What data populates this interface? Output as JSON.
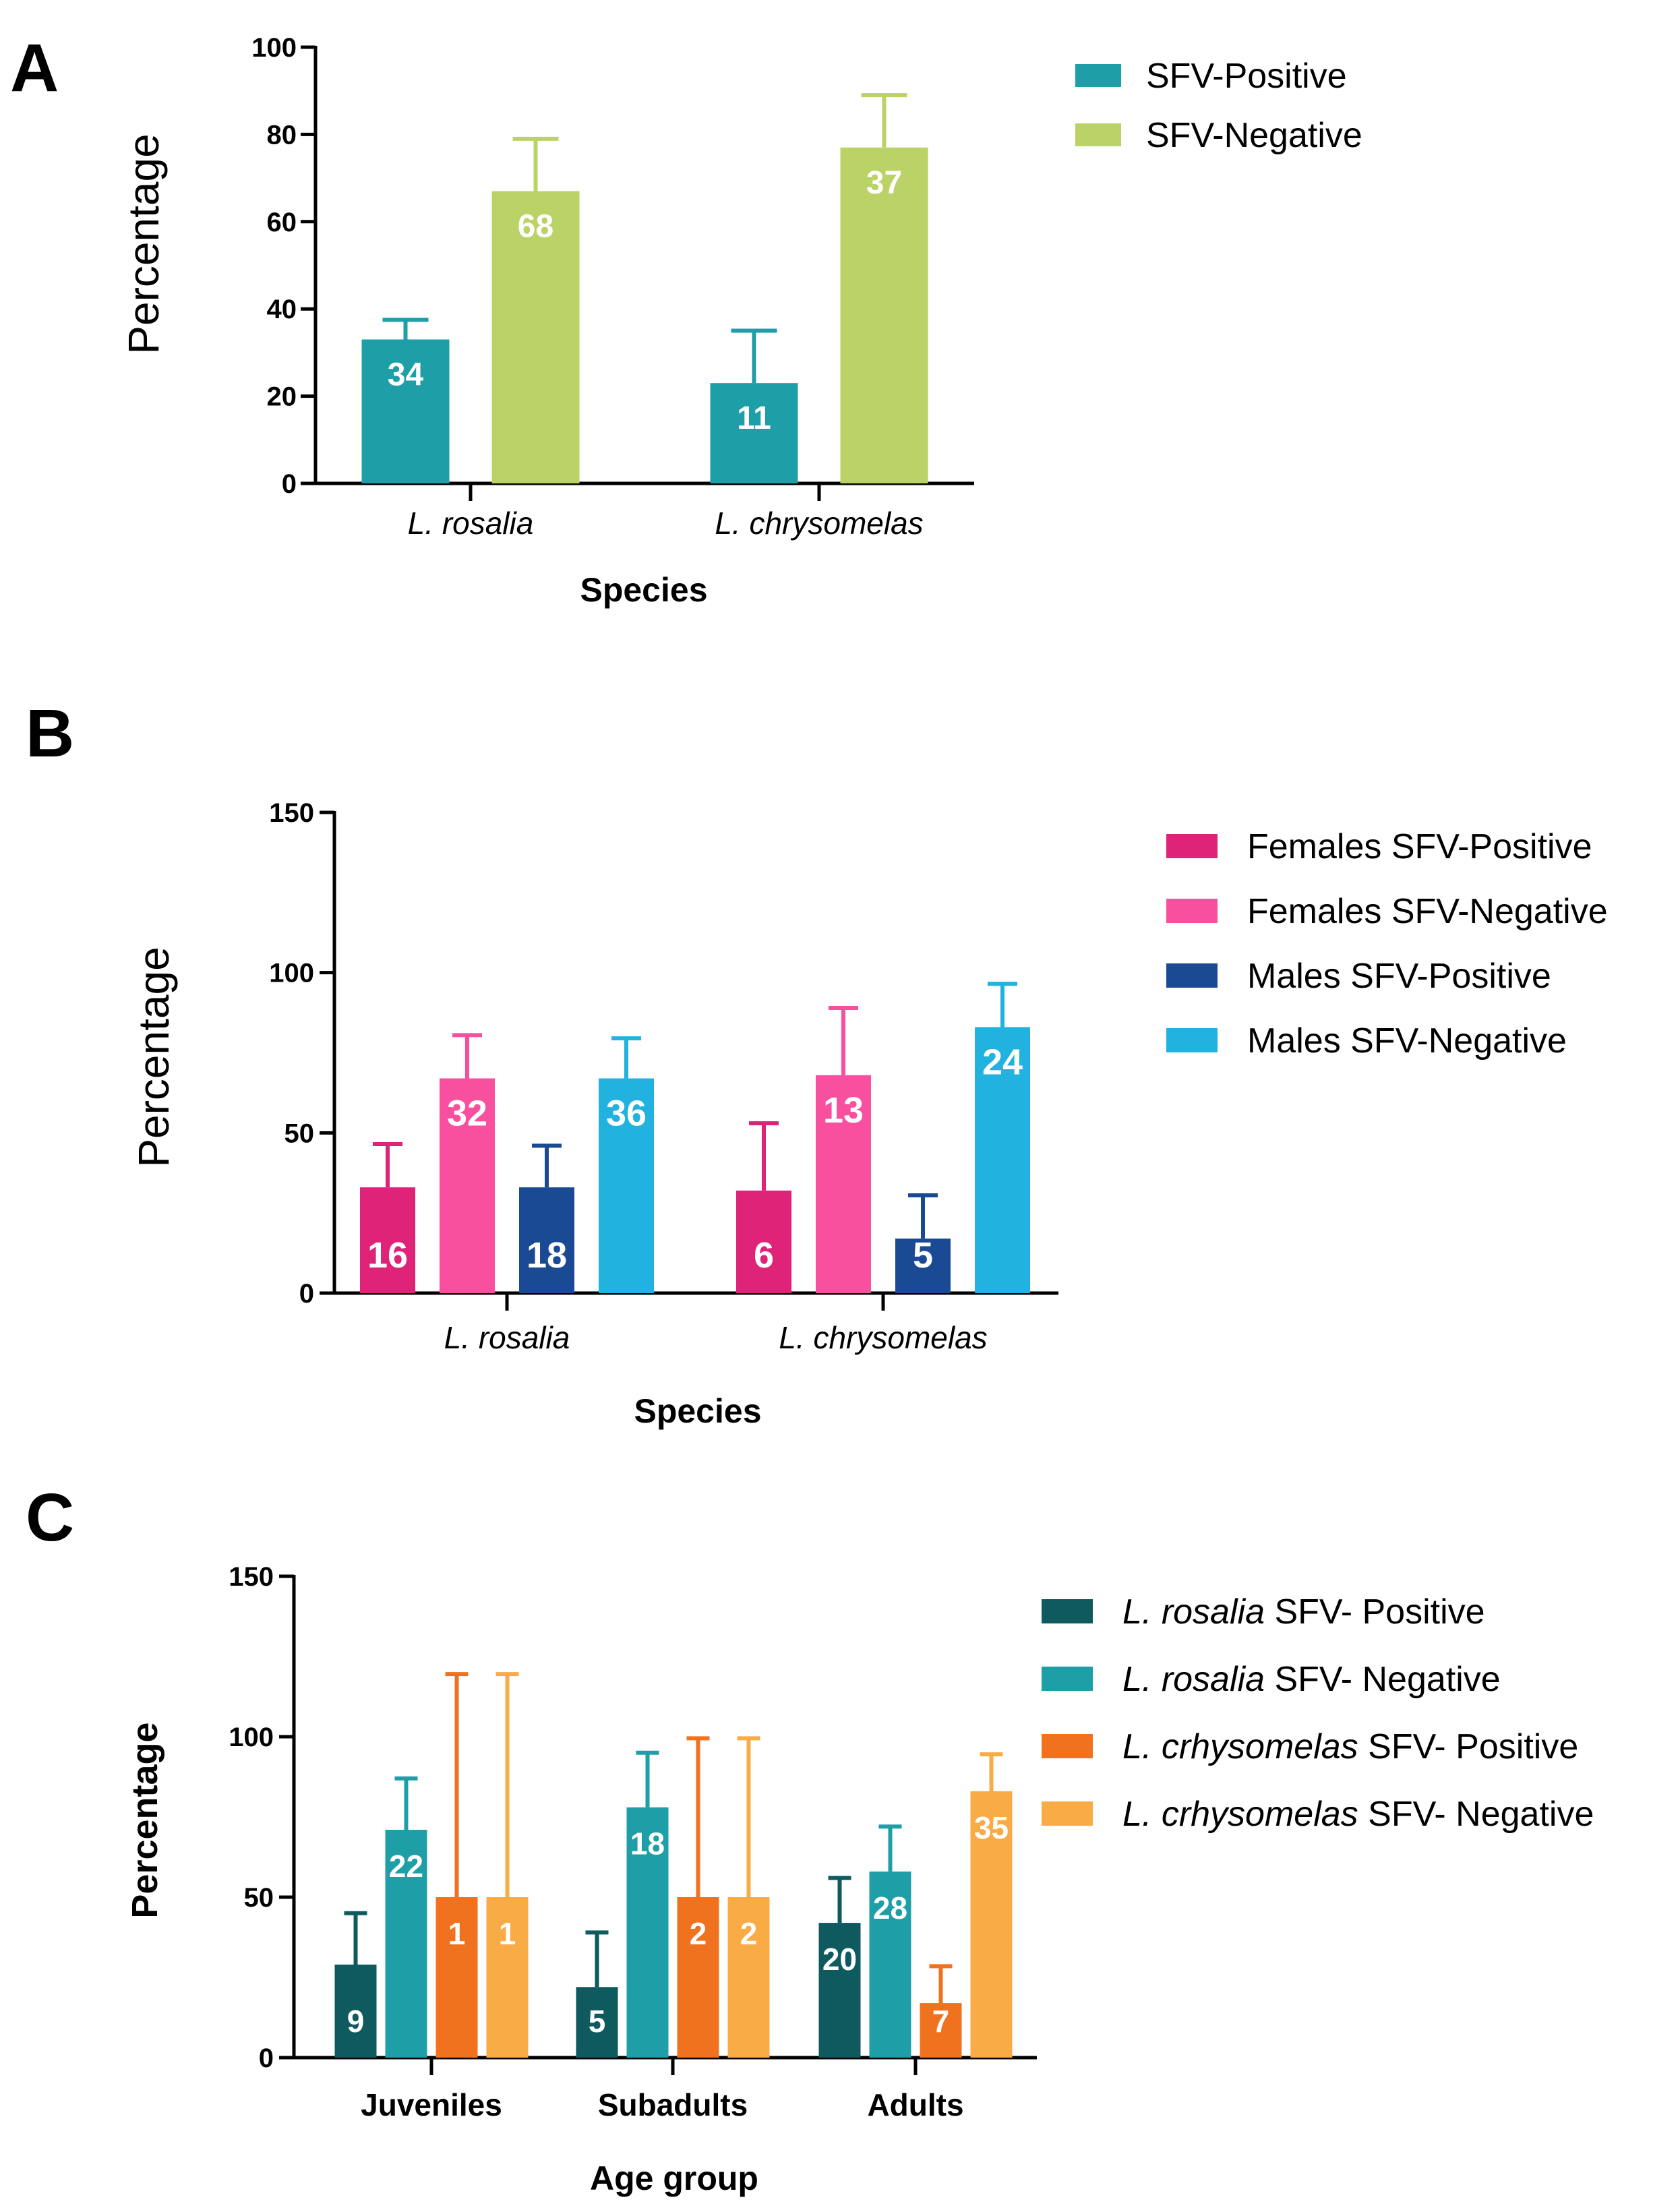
{
  "chart_data": [
    {
      "panel": "A",
      "type": "bar",
      "xlabel": "Species",
      "ylabel": "Percentage",
      "ylim": [
        0,
        100
      ],
      "yticks": [
        0,
        20,
        40,
        60,
        80,
        100
      ],
      "categories": [
        "L. rosalia",
        "L. chrysomelas"
      ],
      "categories_italic": true,
      "legend_position": "right",
      "series": [
        {
          "name": "SFV-Positive",
          "color": "#1E9FA8",
          "values": [
            33,
            23
          ],
          "error": [
            37.5,
            35
          ],
          "labels": [
            "34",
            "11"
          ]
        },
        {
          "name": "SFV-Negative",
          "color": "#BBD366",
          "values": [
            67,
            77
          ],
          "error": [
            79,
            89
          ],
          "labels": [
            "68",
            "37"
          ]
        }
      ]
    },
    {
      "panel": "B",
      "type": "bar",
      "xlabel": "Species",
      "ylabel": "Percentage",
      "ylim": [
        0,
        150
      ],
      "yticks": [
        0,
        50,
        100,
        150
      ],
      "categories": [
        "L. rosalia",
        "L. chrysomelas"
      ],
      "categories_italic": true,
      "legend_position": "right",
      "series": [
        {
          "name": "Females SFV-Positive",
          "color": "#DE2379",
          "values": [
            33,
            32
          ],
          "error": [
            46.5,
            53
          ],
          "labels": [
            "16",
            "6"
          ]
        },
        {
          "name": "Females SFV-Negative",
          "color": "#F84F9E",
          "values": [
            67,
            68
          ],
          "error": [
            80.5,
            89
          ],
          "labels": [
            "32",
            "13"
          ]
        },
        {
          "name": "Males SFV-Positive",
          "color": "#1B4A94",
          "values": [
            33,
            17
          ],
          "error": [
            46,
            30.5
          ],
          "labels": [
            "18",
            "5"
          ]
        },
        {
          "name": "Males SFV-Negative",
          "color": "#22B2DF",
          "values": [
            67,
            83
          ],
          "error": [
            79.5,
            96.5
          ],
          "labels": [
            "36",
            "24"
          ]
        }
      ]
    },
    {
      "panel": "C",
      "type": "bar",
      "xlabel": "Age group",
      "ylabel": "Percentage",
      "ylim": [
        0,
        150
      ],
      "yticks": [
        0,
        50,
        100,
        150
      ],
      "categories": [
        "Juveniles",
        "Subadults",
        "Adults"
      ],
      "categories_italic": false,
      "legend_position": "right",
      "series": [
        {
          "name_italic": "L. rosalia",
          "name_rest": " SFV- Positive",
          "color": "#0F5A5E",
          "values": [
            29,
            22,
            42
          ],
          "error": [
            45,
            39,
            56
          ],
          "labels": [
            "9",
            "5",
            "20"
          ]
        },
        {
          "name_italic": "L. rosalia",
          "name_rest": " SFV- Negative",
          "color": "#1E9FA8",
          "values": [
            71,
            78,
            58
          ],
          "error": [
            87,
            95,
            72
          ],
          "labels": [
            "22",
            "18",
            "28"
          ]
        },
        {
          "name_italic": "L. crhysomelas",
          "name_rest": " SFV- Positive",
          "color": "#F0721E",
          "values": [
            50,
            50,
            17
          ],
          "error": [
            119.5,
            99.5,
            28.5
          ],
          "labels": [
            "1",
            "2",
            "7"
          ]
        },
        {
          "name_italic": "L. crhysomelas",
          "name_rest": " SFV- Negative",
          "color": "#F9AB45",
          "values": [
            50,
            50,
            83
          ],
          "error": [
            119.5,
            99.5,
            94.5
          ],
          "labels": [
            "1",
            "2",
            "35"
          ]
        }
      ]
    }
  ]
}
